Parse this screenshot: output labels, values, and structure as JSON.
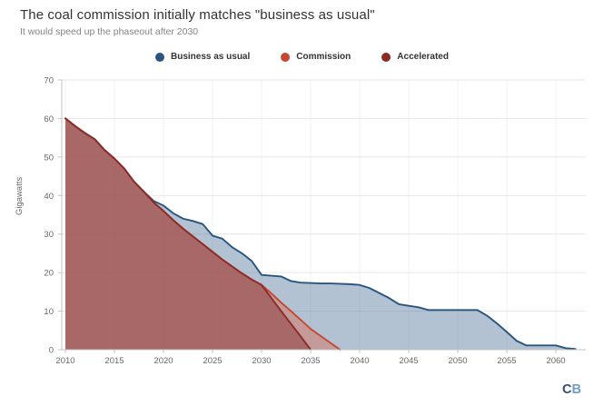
{
  "header": {
    "title": "The coal commission initially matches \"business as usual\"",
    "subtitle": "It would speed up the phaseout after 2030"
  },
  "legend": {
    "items": [
      {
        "label": "Business as usual",
        "color": "#28567f"
      },
      {
        "label": "Commission",
        "color": "#c6472f"
      },
      {
        "label": "Accelerated",
        "color": "#8c2a24"
      }
    ]
  },
  "logo": {
    "c": "C",
    "b": "B"
  },
  "chart_data": {
    "type": "area",
    "title": "The coal commission initially matches \"business as usual\"",
    "subtitle": "It would speed up the phaseout after 2030",
    "xlabel": "",
    "ylabel": "Gigawatts",
    "x_range": [
      2010,
      2063
    ],
    "ylim": [
      0,
      70
    ],
    "yticks": [
      0,
      10,
      20,
      30,
      40,
      50,
      60,
      70
    ],
    "xticks": [
      2010,
      2015,
      2020,
      2025,
      2030,
      2035,
      2040,
      2045,
      2050,
      2055,
      2060
    ],
    "grid": "horizontal-light-plus-faint-vertical",
    "legend_position": "top-center",
    "series": [
      {
        "name": "Business as usual",
        "line_color": "#28567f",
        "fill_color": "rgba(91,125,160,0.47)",
        "x": [
          2010,
          2011,
          2012,
          2013,
          2014,
          2015,
          2016,
          2017,
          2018,
          2019,
          2020,
          2021,
          2022,
          2023,
          2024,
          2025,
          2026,
          2027,
          2028,
          2029,
          2030,
          2031,
          2032,
          2033,
          2034,
          2035,
          2036,
          2037,
          2038,
          2039,
          2040,
          2041,
          2042,
          2043,
          2044,
          2045,
          2046,
          2047,
          2048,
          2049,
          2050,
          2051,
          2052,
          2053,
          2054,
          2055,
          2056,
          2057,
          2058,
          2059,
          2060,
          2061,
          2062
        ],
        "y": [
          60,
          58,
          56.2,
          54.6,
          51.8,
          49.6,
          47,
          43.6,
          41,
          38.6,
          37.4,
          35.4,
          34,
          33.4,
          32.6,
          29.6,
          28.8,
          26.6,
          25,
          23,
          19.4,
          19.2,
          19,
          17.8,
          17.4,
          17.3,
          17.2,
          17.2,
          17.1,
          17,
          16.8,
          16,
          14.7,
          13.4,
          11.8,
          11.4,
          11,
          10.3,
          10.3,
          10.3,
          10.3,
          10.3,
          10.3,
          8.8,
          6.8,
          4.6,
          2.3,
          1.1,
          1.1,
          1.1,
          1.1,
          0.4,
          0.2
        ]
      },
      {
        "name": "Commission",
        "line_color": "#c6472f",
        "fill_color": "rgba(217,108,85,0.45)",
        "x": [
          2010,
          2011,
          2012,
          2013,
          2014,
          2015,
          2016,
          2017,
          2018,
          2019,
          2020,
          2021,
          2022,
          2023,
          2024,
          2025,
          2026,
          2027,
          2028,
          2029,
          2030,
          2031,
          2032,
          2033,
          2034,
          2035,
          2036,
          2037,
          2038
        ],
        "y": [
          60,
          58,
          56.2,
          54.6,
          51.8,
          49.6,
          47,
          43.6,
          41,
          38.2,
          36,
          33.6,
          31.4,
          29.4,
          27.4,
          25.4,
          23.4,
          21.6,
          19.8,
          18.2,
          16.8,
          14.6,
          12.2,
          10,
          7.7,
          5.4,
          3.6,
          1.8,
          0
        ]
      },
      {
        "name": "Accelerated",
        "line_color": "#8c2a24",
        "fill_color": "rgba(150,70,70,0.6)",
        "x": [
          2010,
          2011,
          2012,
          2013,
          2014,
          2015,
          2016,
          2017,
          2018,
          2019,
          2020,
          2021,
          2022,
          2023,
          2024,
          2025,
          2026,
          2027,
          2028,
          2029,
          2030,
          2031,
          2032,
          2033,
          2034,
          2035
        ],
        "y": [
          60,
          58,
          56.2,
          54.6,
          51.8,
          49.6,
          47,
          43.6,
          41,
          38.2,
          36,
          33.6,
          31.4,
          29.4,
          27.4,
          25.4,
          23.4,
          21.6,
          19.8,
          18.2,
          16.8,
          13.4,
          10,
          6.7,
          3.4,
          0
        ]
      }
    ]
  }
}
